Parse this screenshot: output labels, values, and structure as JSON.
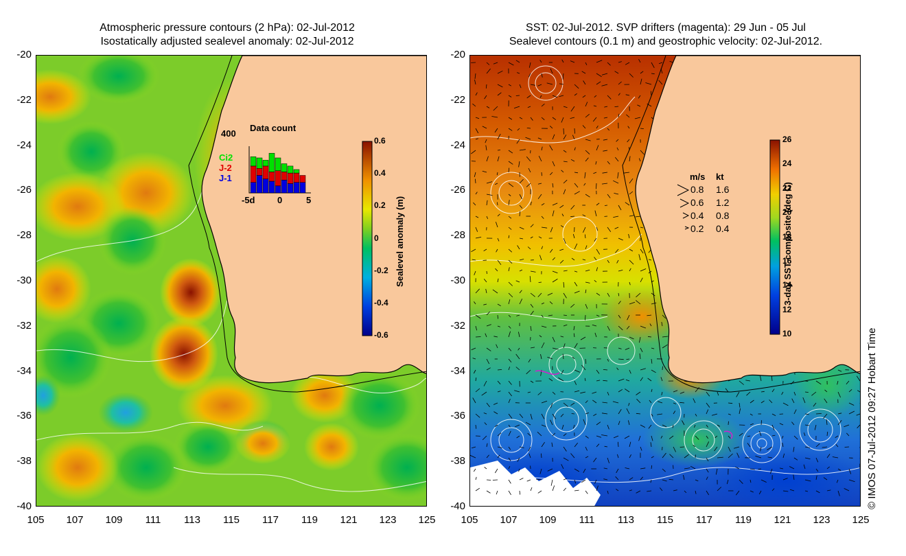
{
  "left_panel": {
    "title_line1": "Atmospheric pressure contours (2 hPa): 02-Jul-2012",
    "title_line2": "Isostatically adjusted sealevel anomaly: 02-Jul-2012",
    "y_ticks": [
      "-20",
      "-22",
      "-24",
      "-26",
      "-28",
      "-30",
      "-32",
      "-34",
      "-36",
      "-38",
      "-40"
    ],
    "x_ticks": [
      "105",
      "107",
      "109",
      "111",
      "113",
      "115",
      "117",
      "119",
      "121",
      "123",
      "125"
    ],
    "colorbar_label": "Sealevel anomaly (m)",
    "colorbar_ticks": [
      "0.6",
      "0.4",
      "0.2",
      "0",
      "-0.2",
      "-0.4",
      "-0.6"
    ],
    "colorbar_range": [
      -0.6,
      0.6
    ],
    "inset": {
      "title": "Data count",
      "ymax": "400",
      "x_labels": [
        "-5d",
        "0",
        "5"
      ],
      "series": [
        {
          "name": "Ci2",
          "color": "#00e000"
        },
        {
          "name": "J-2",
          "color": "#e00000"
        },
        {
          "name": "J-1",
          "color": "#0000e0"
        }
      ],
      "bars": [
        {
          "blue": 90,
          "red": 140,
          "green": 80
        },
        {
          "blue": 150,
          "red": 60,
          "green": 90
        },
        {
          "blue": 120,
          "red": 110,
          "green": 50
        },
        {
          "blue": 100,
          "red": 80,
          "green": 160
        },
        {
          "blue": 60,
          "red": 130,
          "green": 110
        },
        {
          "blue": 110,
          "red": 70,
          "green": 70
        },
        {
          "blue": 80,
          "red": 90,
          "green": 60
        },
        {
          "blue": 90,
          "red": 80,
          "green": 30
        },
        {
          "blue": 90,
          "red": 60,
          "green": 0
        }
      ]
    }
  },
  "right_panel": {
    "title_line1": "SST: 02-Jul-2012. SVP drifters (magenta): 29 Jun - 05 Jul",
    "title_line2": "Sealevel contours (0.1 m) and geostrophic velocity: 02-Jul-2012.",
    "y_ticks": [
      "-20",
      "-22",
      "-24",
      "-26",
      "-28",
      "-30",
      "-32",
      "-34",
      "-36",
      "-38",
      "-40"
    ],
    "x_ticks": [
      "105",
      "107",
      "109",
      "111",
      "113",
      "115",
      "117",
      "119",
      "121",
      "123",
      "125"
    ],
    "colorbar_label": "3-day SST composite (deg C)",
    "colorbar_ticks": [
      "26",
      "24",
      "22",
      "20",
      "18",
      "16",
      "14",
      "12",
      "10"
    ],
    "colorbar_range": [
      10,
      26
    ],
    "velocity_legend": {
      "header_ms": "m/s",
      "header_kt": "kt",
      "rows": [
        {
          "ms": "0.8",
          "kt": "1.6"
        },
        {
          "ms": "0.6",
          "kt": "1.2"
        },
        {
          "ms": "0.4",
          "kt": "0.8"
        },
        {
          "ms": "0.2",
          "kt": "0.4"
        }
      ]
    }
  },
  "credit": "© IMOS 07-Jul-2012 09:27 Hobart Time",
  "colors": {
    "land": "#f9c89c",
    "coast": "#000000"
  }
}
